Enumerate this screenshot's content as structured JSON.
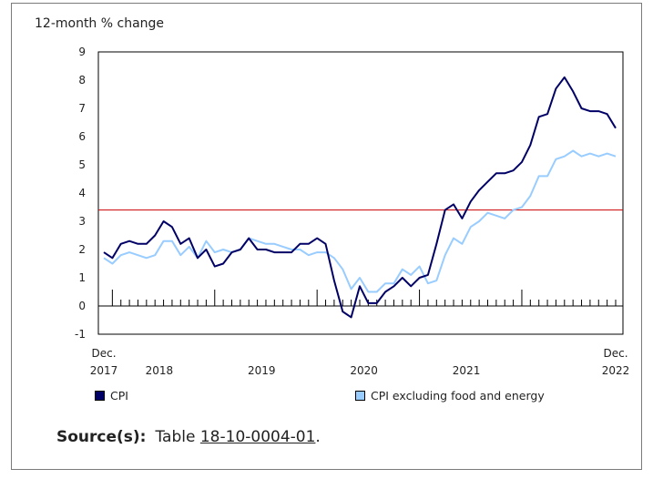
{
  "chart_data": {
    "type": "line",
    "ylabel": "12-month % change",
    "ylim": [
      -1,
      9
    ],
    "yticks": [
      "9",
      "8",
      "7",
      "6",
      "5",
      "4",
      "3",
      "2",
      "1",
      "0",
      "-1"
    ],
    "x_tick_labels": [
      {
        "line1": "Dec.",
        "line2": "2017",
        "index": 0
      },
      {
        "line1": "",
        "line2": "2018",
        "index": 6.5
      },
      {
        "line1": "",
        "line2": "2019",
        "index": 18.5
      },
      {
        "line1": "",
        "line2": "2020",
        "index": 30.5
      },
      {
        "line1": "",
        "line2": "2021",
        "index": 42.5
      },
      {
        "line1": "Dec.",
        "line2": "2022",
        "index": 60
      }
    ],
    "major_tick_indices": [
      1,
      13,
      25,
      37,
      49
    ],
    "reference_line": {
      "value": 3.4,
      "color": "#cc0000"
    },
    "series": [
      {
        "name": "CPI",
        "color": "#000066",
        "values": [
          1.9,
          1.7,
          2.2,
          2.3,
          2.2,
          2.2,
          2.5,
          3.0,
          2.8,
          2.2,
          2.4,
          1.7,
          2.0,
          1.4,
          1.5,
          1.9,
          2.0,
          2.4,
          2.0,
          2.0,
          1.9,
          1.9,
          1.9,
          2.2,
          2.2,
          2.4,
          2.2,
          0.9,
          -0.2,
          -0.4,
          0.7,
          0.1,
          0.1,
          0.5,
          0.7,
          1.0,
          0.7,
          1.0,
          1.1,
          2.2,
          3.4,
          3.6,
          3.1,
          3.7,
          4.1,
          4.4,
          4.7,
          4.7,
          4.8,
          5.1,
          5.7,
          6.7,
          6.8,
          7.7,
          8.1,
          7.6,
          7.0,
          6.9,
          6.9,
          6.8,
          6.3
        ]
      },
      {
        "name": "CPI excluding food and energy",
        "color": "#99ccff",
        "values": [
          1.7,
          1.5,
          1.8,
          1.9,
          1.8,
          1.7,
          1.8,
          2.3,
          2.3,
          1.8,
          2.1,
          1.7,
          2.3,
          1.9,
          2.0,
          1.9,
          2.0,
          2.4,
          2.3,
          2.2,
          2.2,
          2.1,
          2.0,
          2.0,
          1.8,
          1.9,
          1.9,
          1.7,
          1.3,
          0.6,
          1.0,
          0.5,
          0.5,
          0.8,
          0.8,
          1.3,
          1.1,
          1.4,
          0.8,
          0.9,
          1.8,
          2.4,
          2.2,
          2.8,
          3.0,
          3.3,
          3.2,
          3.1,
          3.4,
          3.5,
          3.9,
          4.6,
          4.6,
          5.2,
          5.3,
          5.5,
          5.3,
          5.4,
          5.3,
          5.4,
          5.3
        ]
      }
    ]
  },
  "legend": {
    "cpi_label": "CPI",
    "core_label": "CPI excluding food and energy"
  },
  "source": {
    "label": "Source(s):",
    "prefix": "Table",
    "link_text": "18-10-0004-01",
    "suffix": "."
  }
}
